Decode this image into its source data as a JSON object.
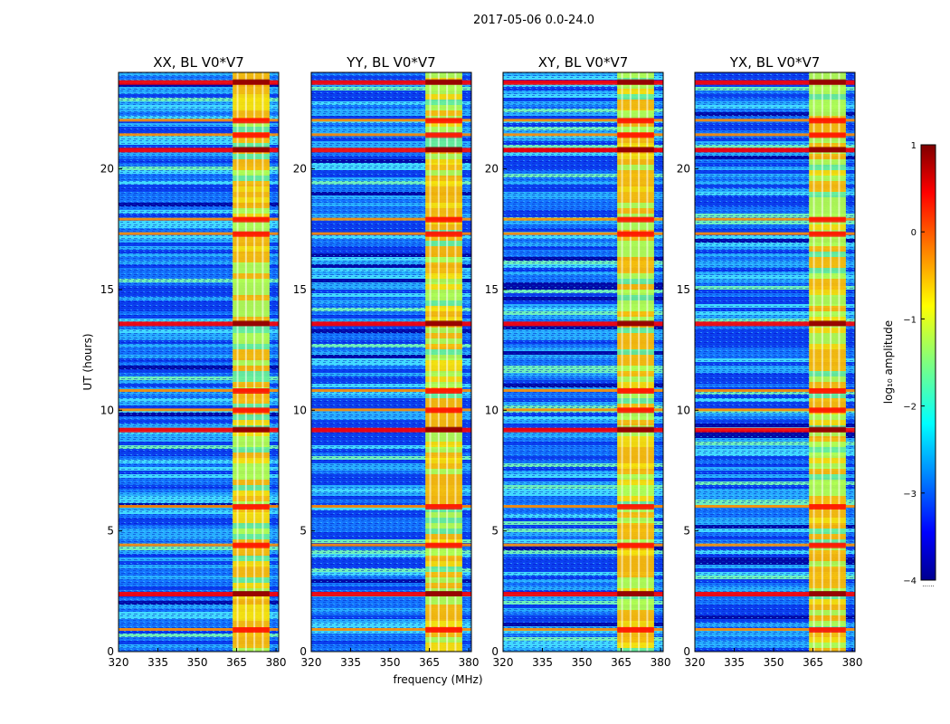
{
  "figure": {
    "suptitle": "2017-05-06 0.0-24.0",
    "xlabel": "frequency (MHz)",
    "ylabel": "UT (hours)"
  },
  "chart_data": {
    "type": "heatmap",
    "panels": [
      {
        "title": "XX, BL V0*V7"
      },
      {
        "title": "YY, BL V0*V7"
      },
      {
        "title": "XY, BL V0*V7"
      },
      {
        "title": "YX, BL V0*V7"
      }
    ],
    "x_range": [
      320,
      381
    ],
    "x_ticks": [
      320,
      335,
      350,
      365,
      380
    ],
    "y_range": [
      0,
      24
    ],
    "y_ticks": [
      0,
      5,
      10,
      15,
      20
    ],
    "band_mhz": [
      363.5,
      377.5
    ],
    "bright_rows_hours": [
      0.9,
      2.4,
      4.4,
      6.0,
      9.2,
      10.0,
      10.8,
      13.6,
      17.3,
      17.9,
      20.8,
      21.4,
      22.0,
      23.6
    ],
    "colorbar": {
      "label": "log₁₀ amplitude",
      "range": [
        -4,
        1
      ],
      "ticks": [
        "1",
        "0",
        "−1",
        "−2",
        "−3",
        "−4"
      ],
      "footnote": "......"
    },
    "colors": {
      "dark_red": "#7f0000",
      "red": "#ff0000",
      "orange": "#ff8c00",
      "yellow": "#ffff00",
      "green": "#7fff7f",
      "cyan": "#00e5ff",
      "blue": "#0050ff",
      "dark_blue": "#00008f"
    }
  }
}
